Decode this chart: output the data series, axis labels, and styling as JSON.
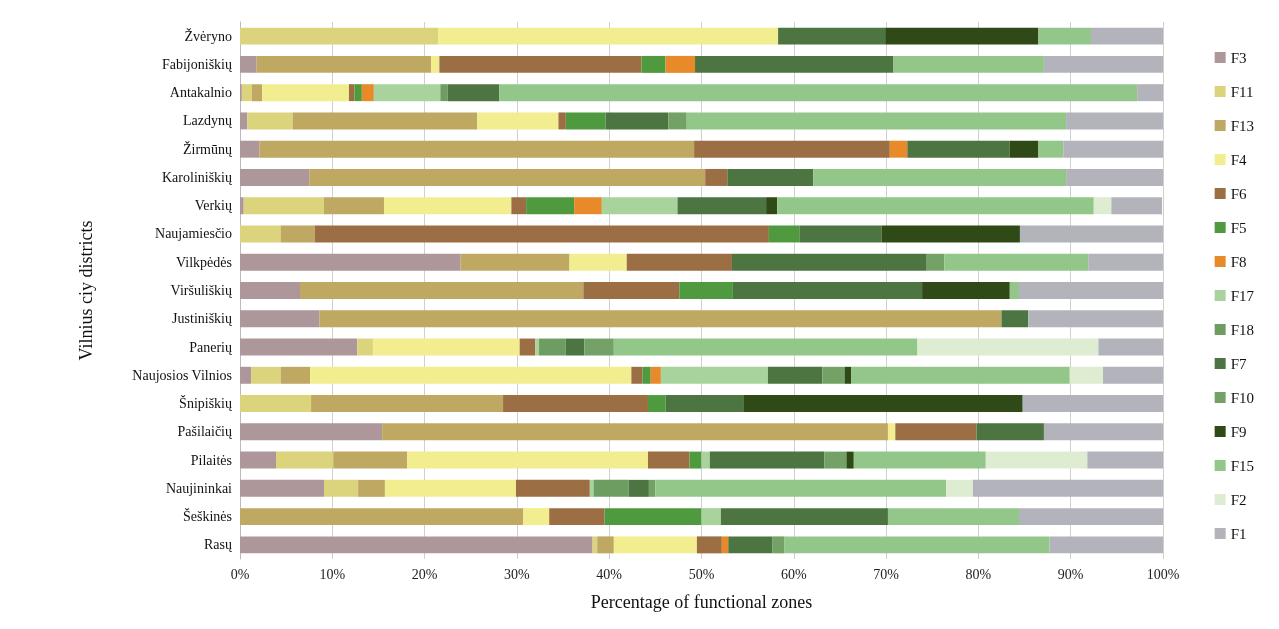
{
  "chart_data": {
    "type": "bar",
    "orientation": "horizontal",
    "stacked": true,
    "xlabel": "Percentage of functional zones",
    "ylabel": "Vilnius ciy districts",
    "categories": [
      "Žvėryno",
      "Fabijoniškių",
      "Antakalnio",
      "Lazdynų",
      "Žirmūnų",
      "Karoliniškių",
      "Verkių",
      "Naujamiesčio",
      "Vilkpėdės",
      "Viršuliškių",
      "Justiniškių",
      "Panerių",
      "Naujosios Vilnios",
      "Šnipiškių",
      "Pašilaičių",
      "Pilaitės",
      "Naujininkai",
      "Šeškinės",
      "Rasų"
    ],
    "series": [
      {
        "name": "F3",
        "color": "#ad979b",
        "values": [
          null,
          1.8,
          0.2,
          0.8,
          2.1,
          7.5,
          0.4,
          null,
          23.9,
          6.5,
          8.6,
          12.7,
          1.2,
          null,
          15.4,
          3.9,
          9.1,
          null,
          38.2
        ]
      },
      {
        "name": "F11",
        "color": "#dcd47c",
        "values": [
          21.5,
          null,
          1.1,
          4.9,
          null,
          null,
          8.7,
          4.4,
          null,
          null,
          null,
          1.7,
          3.2,
          7.7,
          null,
          6.2,
          3.7,
          null,
          0.5
        ]
      },
      {
        "name": "F13",
        "color": "#bea862",
        "values": [
          null,
          18.9,
          1.1,
          20.0,
          47.1,
          42.9,
          6.5,
          3.7,
          11.8,
          30.7,
          73.9,
          null,
          3.2,
          20.8,
          54.8,
          8.0,
          2.9,
          30.7,
          1.8
        ]
      },
      {
        "name": "F4",
        "color": "#f2ee90",
        "values": [
          36.8,
          0.9,
          9.4,
          8.8,
          null,
          null,
          13.8,
          null,
          6.2,
          null,
          null,
          15.9,
          34.8,
          null,
          0.8,
          26.1,
          14.2,
          2.8,
          9.0
        ]
      },
      {
        "name": "F6",
        "color": "#9c6e43",
        "values": [
          null,
          21.9,
          0.6,
          0.8,
          21.2,
          2.4,
          1.6,
          49.2,
          11.4,
          10.4,
          null,
          1.7,
          1.2,
          15.7,
          8.8,
          4.5,
          8.0,
          6.0,
          2.7
        ]
      },
      {
        "name": "F5",
        "color": "#4f9a3e",
        "values": [
          null,
          2.6,
          0.8,
          4.3,
          null,
          null,
          5.2,
          3.3,
          null,
          5.8,
          null,
          null,
          0.9,
          1.9,
          null,
          1.3,
          null,
          10.5,
          null
        ]
      },
      {
        "name": "F8",
        "color": "#e8892a",
        "values": [
          null,
          3.2,
          1.3,
          null,
          1.9,
          null,
          3.0,
          null,
          null,
          null,
          null,
          null,
          1.1,
          null,
          null,
          null,
          null,
          null,
          0.7
        ]
      },
      {
        "name": "F17",
        "color": "#a9d39c",
        "values": [
          null,
          null,
          7.2,
          null,
          null,
          null,
          8.2,
          null,
          null,
          null,
          null,
          0.4,
          11.6,
          null,
          null,
          0.9,
          0.4,
          2.1,
          null
        ]
      },
      {
        "name": "F18",
        "color": "#6e9d62",
        "values": [
          null,
          null,
          0.8,
          null,
          null,
          null,
          null,
          null,
          null,
          null,
          null,
          2.9,
          null,
          null,
          null,
          null,
          3.8,
          null,
          null
        ]
      },
      {
        "name": "F7",
        "color": "#4d7541",
        "values": [
          11.6,
          21.5,
          5.6,
          6.8,
          11.1,
          9.3,
          9.6,
          8.9,
          21.1,
          20.5,
          2.9,
          2.0,
          5.9,
          8.5,
          7.3,
          12.4,
          2.2,
          18.1,
          4.8
        ]
      },
      {
        "name": "F10",
        "color": "#74a266",
        "values": [
          null,
          null,
          null,
          2.0,
          null,
          null,
          null,
          null,
          1.9,
          null,
          null,
          3.2,
          2.4,
          null,
          null,
          2.4,
          0.7,
          null,
          1.3
        ]
      },
      {
        "name": "F9",
        "color": "#2f4a17",
        "values": [
          16.6,
          null,
          null,
          null,
          3.1,
          null,
          1.2,
          15.0,
          null,
          9.5,
          null,
          null,
          0.7,
          30.2,
          null,
          0.8,
          null,
          null,
          null
        ]
      },
      {
        "name": "F15",
        "color": "#93c78a",
        "values": [
          5.7,
          16.3,
          69.1,
          41.1,
          2.7,
          27.4,
          34.3,
          null,
          15.6,
          1.0,
          null,
          32.9,
          23.7,
          null,
          null,
          14.3,
          31.5,
          14.2,
          28.7
        ]
      },
      {
        "name": "F2",
        "color": "#deedd2",
        "values": [
          null,
          null,
          null,
          null,
          null,
          null,
          1.9,
          null,
          null,
          null,
          null,
          19.6,
          3.6,
          null,
          null,
          11.0,
          2.9,
          null,
          null
        ]
      },
      {
        "name": "F1",
        "color": "#b3b4bb",
        "values": [
          7.8,
          12.9,
          2.8,
          10.5,
          10.8,
          10.5,
          5.5,
          15.5,
          8.1,
          15.6,
          14.6,
          7.0,
          6.5,
          15.2,
          12.9,
          8.2,
          20.6,
          15.6,
          12.3
        ]
      }
    ],
    "xlim": [
      0,
      100
    ],
    "xticks": [
      {
        "value": 0,
        "label": "0%"
      },
      {
        "value": 10,
        "label": "10%"
      },
      {
        "value": 20,
        "label": "20%"
      },
      {
        "value": 30,
        "label": "30%"
      },
      {
        "value": 40,
        "label": "40%"
      },
      {
        "value": 50,
        "label": "50%"
      },
      {
        "value": 60,
        "label": "60%"
      },
      {
        "value": 70,
        "label": "70%"
      },
      {
        "value": 80,
        "label": "80%"
      },
      {
        "value": 90,
        "label": "90%"
      },
      {
        "value": 100,
        "label": "100%"
      }
    ],
    "grid": "x",
    "legend": "right"
  }
}
